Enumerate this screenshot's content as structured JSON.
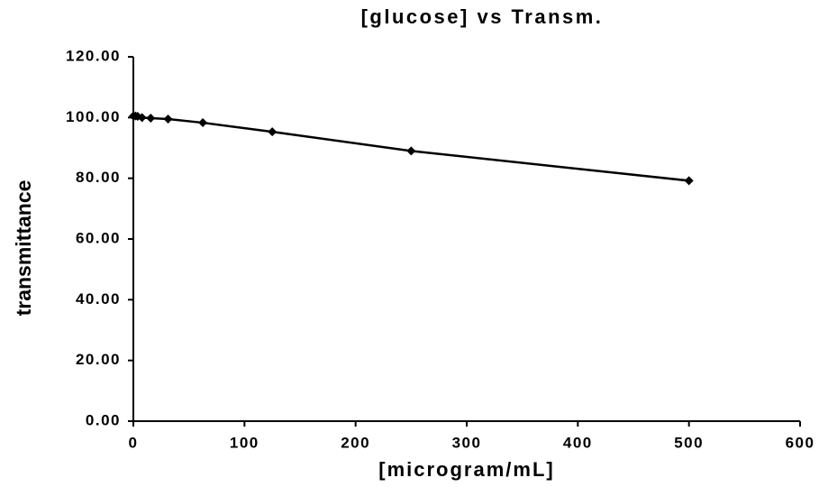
{
  "chart_data": {
    "type": "line",
    "title": "[glucose] vs Transm.",
    "x_label": "[microgram/mL]",
    "y_label": "transmittance",
    "x": [
      0,
      1.95,
      3.9,
      7.8,
      15.6,
      31.25,
      62.5,
      125,
      250,
      500
    ],
    "series": [
      {
        "name": "transmittance",
        "color": "#000000",
        "values": [
          100.5,
          100.5,
          100.4,
          100.0,
          99.8,
          99.5,
          98.3,
          95.3,
          89.0,
          79.2
        ]
      }
    ],
    "xlim": [
      0,
      600
    ],
    "xticks": [
      0,
      100,
      200,
      300,
      400,
      500,
      600
    ],
    "ylim": [
      0,
      120
    ],
    "yticks": [
      {
        "value": 0,
        "label": "0.00"
      },
      {
        "value": 20,
        "label": "20.00"
      },
      {
        "value": 40,
        "label": "40.00"
      },
      {
        "value": 60,
        "label": "60.00"
      },
      {
        "value": 80,
        "label": "80.00"
      },
      {
        "value": 100,
        "label": "100.00"
      },
      {
        "value": 120,
        "label": "120.00"
      }
    ],
    "grid": false
  }
}
